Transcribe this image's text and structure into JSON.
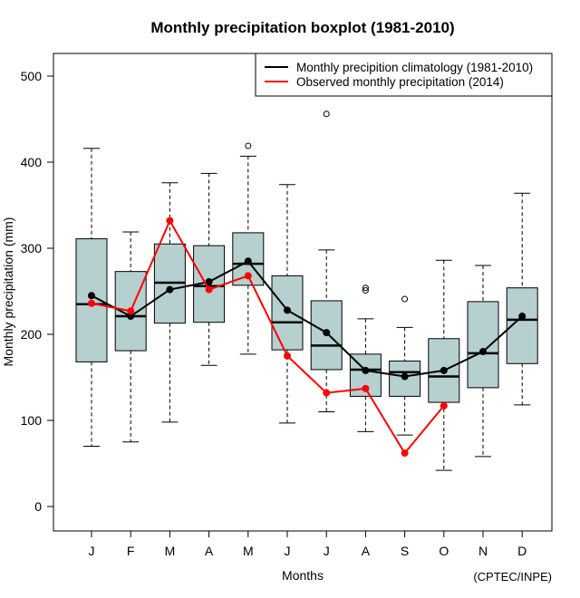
{
  "chart_data": {
    "type": "boxplot",
    "title": "Monthly precipitation boxplot (1981-2010)",
    "xlabel": "Months",
    "ylabel": "Monthly precipitation (mm)",
    "credit": "(CPTEC/INPE)",
    "ylim": [
      -27,
      528
    ],
    "yticks": [
      0,
      100,
      200,
      300,
      400,
      500
    ],
    "ytick_labels": [
      "0",
      "100",
      "200",
      "300",
      "400",
      "500"
    ],
    "categories": [
      "J",
      "F",
      "M",
      "A",
      "M",
      "J",
      "J",
      "A",
      "S",
      "O",
      "N",
      "D"
    ],
    "box_color": "#b6cfcf",
    "boxes": [
      {
        "month": "J",
        "lower_whisker": 70,
        "q1": 168,
        "median": 235,
        "q3": 311,
        "upper_whisker": 416,
        "outliers": []
      },
      {
        "month": "F",
        "lower_whisker": 75,
        "q1": 181,
        "median": 221,
        "q3": 273,
        "upper_whisker": 319,
        "outliers": []
      },
      {
        "month": "M",
        "lower_whisker": 98,
        "q1": 213,
        "median": 260,
        "q3": 305,
        "upper_whisker": 376,
        "outliers": []
      },
      {
        "month": "A",
        "lower_whisker": 164,
        "q1": 214,
        "median": 256,
        "q3": 303,
        "upper_whisker": 387,
        "outliers": []
      },
      {
        "month": "M",
        "lower_whisker": 177,
        "q1": 257,
        "median": 282,
        "q3": 318,
        "upper_whisker": 407,
        "outliers": [
          419
        ]
      },
      {
        "month": "J",
        "lower_whisker": 97,
        "q1": 182,
        "median": 214,
        "q3": 268,
        "upper_whisker": 374,
        "outliers": []
      },
      {
        "month": "J",
        "lower_whisker": 110,
        "q1": 159,
        "median": 187,
        "q3": 239,
        "upper_whisker": 298,
        "outliers": [
          456
        ]
      },
      {
        "month": "A",
        "lower_whisker": 87,
        "q1": 128,
        "median": 159,
        "q3": 177,
        "upper_whisker": 218,
        "outliers": [
          251,
          254
        ]
      },
      {
        "month": "S",
        "lower_whisker": 83,
        "q1": 128,
        "median": 156,
        "q3": 169,
        "upper_whisker": 208,
        "outliers": [
          241
        ]
      },
      {
        "month": "O",
        "lower_whisker": 42,
        "q1": 121,
        "median": 151,
        "q3": 195,
        "upper_whisker": 286,
        "outliers": []
      },
      {
        "month": "N",
        "lower_whisker": 58,
        "q1": 138,
        "median": 178,
        "q3": 238,
        "upper_whisker": 280,
        "outliers": []
      },
      {
        "month": "D",
        "lower_whisker": 118,
        "q1": 166,
        "median": 217,
        "q3": 254,
        "upper_whisker": 364,
        "outliers": []
      }
    ],
    "series": [
      {
        "name": "Monthly precipition climatology (1981-2010)",
        "color": "#000000",
        "values": [
          245,
          221,
          252,
          261,
          285,
          228,
          202,
          158,
          151,
          158,
          180,
          221
        ]
      },
      {
        "name": "Observed monthly precipitation (2014)",
        "color": "#ff0000",
        "values": [
          236,
          227,
          332,
          252,
          268,
          175,
          132,
          137,
          62,
          117,
          null,
          null
        ]
      }
    ],
    "legend": {
      "position": "top-right",
      "entries": [
        {
          "label": "Monthly precipition climatology (1981-2010)",
          "color": "#000000"
        },
        {
          "label": "Observed monthly precipitation (2014)",
          "color": "#ff0000"
        }
      ]
    },
    "grid": false
  }
}
